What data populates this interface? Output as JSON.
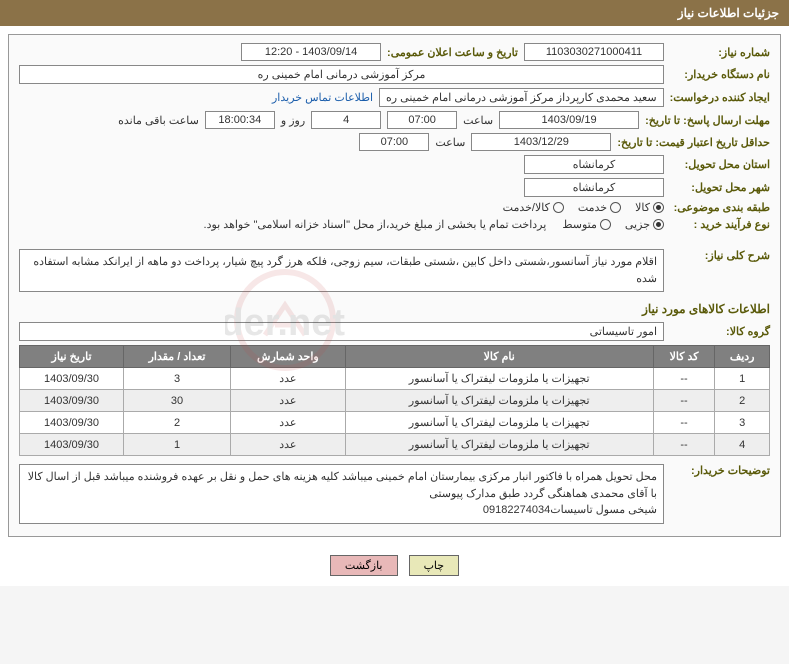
{
  "header": "جزئیات اطلاعات نیاز",
  "fields": {
    "need_no_label": "شماره نیاز:",
    "need_no": "1103030271000411",
    "pub_date_label": "تاریخ و ساعت اعلان عمومی:",
    "pub_date": "1403/09/14 - 12:20",
    "buyer_org_label": "نام دستگاه خریدار:",
    "buyer_org": "مرکز آموزشی درمانی امام خمینی ره",
    "requester_label": "ایجاد کننده درخواست:",
    "requester": "سعید محمدی کارپرداز مرکز آموزشی درمانی امام خمینی ره",
    "contact_link": "اطلاعات تماس خریدار",
    "deadline_label": "مهلت ارسال پاسخ: تا تاریخ:",
    "deadline_date": "1403/09/19",
    "time_label": "ساعت",
    "deadline_time": "07:00",
    "days_remain": "4",
    "days_remain_label": "روز و",
    "hours_remain": "18:00:34",
    "hours_remain_label": "ساعت باقی مانده",
    "validity_label": "حداقل تاریخ اعتبار قیمت: تا تاریخ:",
    "validity_date": "1403/12/29",
    "validity_time": "07:00",
    "province_label": "استان محل تحویل:",
    "province": "کرمانشاه",
    "city_label": "شهر محل تحویل:",
    "city": "کرمانشاه",
    "category_label": "طبقه بندی موضوعی:",
    "cat_opt1": "کالا",
    "cat_opt2": "خدمت",
    "cat_opt3": "کالا/خدمت",
    "process_label": "نوع فرآیند خرید :",
    "proc_opt1": "جزیی",
    "proc_opt2": "متوسط",
    "proc_note": "پرداخت تمام یا بخشی از مبلغ خرید،از محل \"اسناد خزانه اسلامی\" خواهد بود.",
    "need_desc_label": "شرح کلی نیاز:",
    "need_desc": "اقلام مورد نیاز آسانسور،شستی داخل کابین ،شستی طبقات، سیم زوجی، فلکه هرز گرد پیچ شیار، پرداخت دو ماهه از ایرانکد مشابه استفاده شده",
    "goods_info_title": "اطلاعات کالاهای مورد نیاز",
    "goods_group_label": "گروه کالا:",
    "goods_group": "امور تاسیساتی",
    "buyer_notes_label": "توضیحات خریدار:",
    "buyer_notes": "محل تحویل همراه با فاکتور انبار مرکزی بیمارستان امام خمینی میباشد کلیه هزینه های حمل و نقل بر عهده فروشنده میباشد قبل از اسال کالا با آقای محمدی هماهنگی گردد  طبق مدارک پیوستی\nشیخی مسول تاسیسات09182274034"
  },
  "table": {
    "headers": [
      "ردیف",
      "کد کالا",
      "نام کالا",
      "واحد شمارش",
      "تعداد / مقدار",
      "تاریخ نیاز"
    ],
    "rows": [
      [
        "1",
        "--",
        "تجهیزات یا ملزومات لیفتراک یا آسانسور",
        "عدد",
        "3",
        "1403/09/30"
      ],
      [
        "2",
        "--",
        "تجهیزات یا ملزومات لیفتراک یا آسانسور",
        "عدد",
        "30",
        "1403/09/30"
      ],
      [
        "3",
        "--",
        "تجهیزات یا ملزومات لیفتراک یا آسانسور",
        "عدد",
        "2",
        "1403/09/30"
      ],
      [
        "4",
        "--",
        "تجهیزات یا ملزومات لیفتراک یا آسانسور",
        "عدد",
        "1",
        "1403/09/30"
      ]
    ]
  },
  "buttons": {
    "print": "چاپ",
    "back": "بازگشت"
  },
  "watermark_text": "AriaTender.net"
}
